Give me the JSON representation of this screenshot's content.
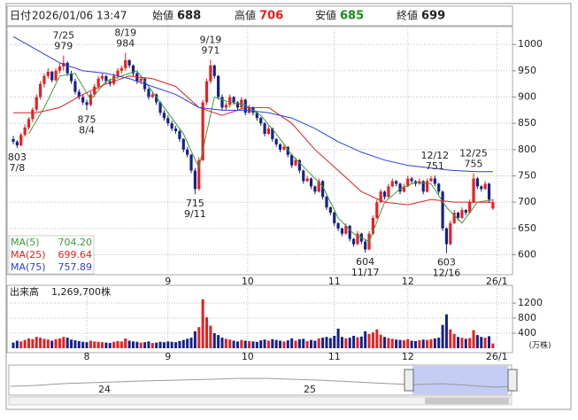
{
  "header": {
    "date_label": "日付",
    "datetime": "2026/01/06 13:47",
    "open_label": "始値",
    "open": 688,
    "high_label": "高値",
    "high": 706,
    "low_label": "安値",
    "low": 685,
    "close_label": "終値",
    "close": 699
  },
  "chart_data": [
    {
      "type": "candlestick",
      "up_color": "#e8201e",
      "down_color": "#16218a",
      "ylim": [
        562,
        1034
      ],
      "yticks": [
        600,
        650,
        700,
        750,
        800,
        850,
        900,
        950,
        1000
      ],
      "grid": true,
      "xticks": [
        {
          "value": 40,
          "label": "9"
        },
        {
          "value": 60.6,
          "label": "10"
        },
        {
          "value": 83,
          "label": "11"
        },
        {
          "value": 102,
          "label": "12"
        },
        {
          "value": 125,
          "label": "26/1"
        }
      ],
      "candles": [
        [
          820,
          826,
          810,
          815
        ],
        [
          815,
          818,
          803,
          808
        ],
        [
          808,
          832,
          806,
          828
        ],
        [
          828,
          848,
          825,
          842
        ],
        [
          842,
          862,
          838,
          858
        ],
        [
          858,
          880,
          852,
          876
        ],
        [
          876,
          905,
          872,
          900
        ],
        [
          900,
          930,
          895,
          925
        ],
        [
          925,
          945,
          918,
          940
        ],
        [
          940,
          955,
          935,
          948
        ],
        [
          948,
          950,
          928,
          932
        ],
        [
          932,
          955,
          930,
          950
        ],
        [
          950,
          965,
          945,
          958
        ],
        [
          958,
          979,
          950,
          965
        ],
        [
          965,
          968,
          940,
          945
        ],
        [
          945,
          950,
          925,
          930
        ],
        [
          930,
          935,
          905,
          910
        ],
        [
          910,
          915,
          895,
          900
        ],
        [
          900,
          905,
          885,
          890
        ],
        [
          890,
          895,
          875,
          885
        ],
        [
          885,
          910,
          882,
          905
        ],
        [
          905,
          925,
          900,
          920
        ],
        [
          920,
          940,
          915,
          935
        ],
        [
          935,
          945,
          930,
          940
        ],
        [
          940,
          942,
          925,
          930
        ],
        [
          930,
          935,
          920,
          925
        ],
        [
          925,
          945,
          922,
          940
        ],
        [
          940,
          955,
          935,
          950
        ],
        [
          950,
          960,
          945,
          955
        ],
        [
          955,
          984,
          950,
          970
        ],
        [
          970,
          972,
          955,
          960
        ],
        [
          960,
          962,
          940,
          945
        ],
        [
          945,
          948,
          925,
          930
        ],
        [
          930,
          940,
          925,
          935
        ],
        [
          935,
          937,
          910,
          915
        ],
        [
          915,
          918,
          895,
          900
        ],
        [
          900,
          910,
          898,
          905
        ],
        [
          905,
          907,
          885,
          890
        ],
        [
          890,
          892,
          865,
          870
        ],
        [
          870,
          875,
          855,
          860
        ],
        [
          860,
          865,
          845,
          850
        ],
        [
          850,
          855,
          835,
          840
        ],
        [
          840,
          845,
          830,
          835
        ],
        [
          835,
          838,
          815,
          820
        ],
        [
          820,
          822,
          795,
          800
        ],
        [
          800,
          805,
          785,
          790
        ],
        [
          790,
          792,
          755,
          760
        ],
        [
          760,
          765,
          715,
          725
        ],
        [
          725,
          785,
          722,
          780
        ],
        [
          780,
          895,
          778,
          890
        ],
        [
          890,
          935,
          885,
          930
        ],
        [
          930,
          971,
          925,
          960
        ],
        [
          960,
          962,
          935,
          940
        ],
        [
          940,
          942,
          895,
          900
        ],
        [
          900,
          905,
          875,
          880
        ],
        [
          880,
          890,
          875,
          885
        ],
        [
          885,
          905,
          880,
          900
        ],
        [
          900,
          902,
          885,
          890
        ],
        [
          890,
          892,
          875,
          880
        ],
        [
          880,
          900,
          878,
          895
        ],
        [
          895,
          897,
          865,
          870
        ],
        [
          870,
          885,
          868,
          880
        ],
        [
          880,
          882,
          865,
          870
        ],
        [
          870,
          872,
          855,
          860
        ],
        [
          860,
          862,
          845,
          850
        ],
        [
          850,
          852,
          825,
          830
        ],
        [
          830,
          845,
          828,
          840
        ],
        [
          840,
          842,
          815,
          820
        ],
        [
          820,
          822,
          805,
          810
        ],
        [
          810,
          812,
          795,
          800
        ],
        [
          800,
          810,
          798,
          805
        ],
        [
          805,
          807,
          785,
          790
        ],
        [
          790,
          792,
          765,
          770
        ],
        [
          770,
          785,
          768,
          780
        ],
        [
          780,
          782,
          755,
          760
        ],
        [
          760,
          762,
          735,
          740
        ],
        [
          740,
          750,
          738,
          745
        ],
        [
          745,
          747,
          725,
          730
        ],
        [
          730,
          732,
          715,
          720
        ],
        [
          720,
          745,
          718,
          740
        ],
        [
          740,
          742,
          705,
          710
        ],
        [
          710,
          712,
          685,
          690
        ],
        [
          690,
          692,
          675,
          680
        ],
        [
          680,
          682,
          655,
          660
        ],
        [
          660,
          662,
          645,
          650
        ],
        [
          650,
          652,
          635,
          640
        ],
        [
          640,
          660,
          638,
          655
        ],
        [
          655,
          657,
          625,
          630
        ],
        [
          630,
          632,
          615,
          620
        ],
        [
          620,
          645,
          618,
          640
        ],
        [
          640,
          642,
          620,
          625
        ],
        [
          625,
          628,
          604,
          610
        ],
        [
          610,
          645,
          608,
          640
        ],
        [
          640,
          675,
          638,
          670
        ],
        [
          670,
          705,
          668,
          700
        ],
        [
          700,
          725,
          698,
          720
        ],
        [
          720,
          722,
          705,
          710
        ],
        [
          710,
          735,
          708,
          730
        ],
        [
          730,
          745,
          728,
          740
        ],
        [
          740,
          742,
          730,
          735
        ],
        [
          735,
          737,
          715,
          720
        ],
        [
          720,
          735,
          718,
          730
        ],
        [
          730,
          750,
          728,
          745
        ],
        [
          745,
          748,
          735,
          740
        ],
        [
          740,
          742,
          730,
          735
        ],
        [
          735,
          745,
          733,
          740
        ],
        [
          740,
          742,
          715,
          720
        ],
        [
          720,
          745,
          718,
          740
        ],
        [
          740,
          750,
          738,
          745
        ],
        [
          745,
          751,
          730,
          735
        ],
        [
          735,
          737,
          715,
          720
        ],
        [
          720,
          722,
          645,
          650
        ],
        [
          650,
          652,
          603,
          620
        ],
        [
          620,
          665,
          618,
          660
        ],
        [
          660,
          685,
          658,
          680
        ],
        [
          680,
          682,
          665,
          670
        ],
        [
          670,
          690,
          668,
          685
        ],
        [
          685,
          687,
          675,
          680
        ],
        [
          680,
          705,
          678,
          700
        ],
        [
          700,
          755,
          698,
          745
        ],
        [
          745,
          748,
          725,
          730
        ],
        [
          730,
          732,
          720,
          725
        ],
        [
          725,
          740,
          723,
          735
        ],
        [
          735,
          737,
          700,
          705
        ],
        [
          688,
          706,
          685,
          699
        ]
      ],
      "series": [
        {
          "name": "MA(5)",
          "color": "#3a9a3a",
          "value_label": "704.20",
          "x": [
            4,
            8,
            12,
            16,
            20,
            24,
            28,
            32,
            36,
            40,
            44,
            48,
            52,
            56,
            60,
            64,
            68,
            72,
            76,
            80,
            84,
            88,
            92,
            96,
            100,
            104,
            108,
            112,
            116,
            120,
            124
          ],
          "values": [
            830,
            880,
            940,
            945,
            895,
            930,
            940,
            950,
            910,
            870,
            830,
            765,
            900,
            890,
            885,
            865,
            830,
            790,
            760,
            730,
            670,
            640,
            625,
            700,
            725,
            738,
            735,
            690,
            660,
            700,
            704.2
          ]
        },
        {
          "name": "MA(25)",
          "color": "#e02020",
          "value_label": "699.64",
          "x": [
            0,
            6,
            12,
            18,
            24,
            30,
            36,
            42,
            48,
            54,
            60,
            66,
            72,
            78,
            84,
            90,
            96,
            102,
            108,
            114,
            120,
            124
          ],
          "values": [
            870,
            870,
            880,
            905,
            925,
            940,
            935,
            920,
            880,
            865,
            880,
            880,
            850,
            800,
            760,
            720,
            700,
            695,
            705,
            700,
            700,
            699.64
          ]
        },
        {
          "name": "MA(75)",
          "color": "#2b3fd6",
          "value_label": "757.89",
          "x": [
            0,
            6,
            12,
            18,
            24,
            30,
            36,
            42,
            48,
            54,
            60,
            66,
            72,
            78,
            84,
            90,
            96,
            102,
            108,
            114,
            120,
            124
          ],
          "values": [
            1015,
            990,
            965,
            950,
            945,
            935,
            920,
            905,
            880,
            875,
            875,
            870,
            860,
            840,
            815,
            795,
            780,
            770,
            765,
            760,
            758,
            757.89
          ]
        }
      ],
      "annotations": [
        {
          "x": 1,
          "value": 803,
          "label": "7/8",
          "place": "below"
        },
        {
          "x": 13,
          "value": 979,
          "label": "7/25",
          "place": "above"
        },
        {
          "x": 19,
          "value": 875,
          "label": "8/4",
          "place": "below"
        },
        {
          "x": 29,
          "value": 984,
          "label": "8/19",
          "place": "above"
        },
        {
          "x": 47,
          "value": 715,
          "label": "9/11",
          "place": "below"
        },
        {
          "x": 51,
          "value": 971,
          "label": "9/19",
          "place": "above"
        },
        {
          "x": 91,
          "value": 604,
          "label": "11/17",
          "place": "below"
        },
        {
          "x": 109,
          "value": 751,
          "label": "12/12",
          "place": "above"
        },
        {
          "x": 112,
          "value": 603,
          "label": "12/16",
          "place": "below"
        },
        {
          "x": 119,
          "value": 755,
          "label": "12/25",
          "place": "above"
        }
      ]
    },
    {
      "type": "bar",
      "title": "出来高",
      "subtitle": "1,269,700株",
      "unit_label": "(万株)",
      "ylim": [
        0,
        1600
      ],
      "yticks": [
        400,
        800,
        1200
      ],
      "grid": true,
      "xticks": [
        {
          "value": 19,
          "label": "8"
        },
        {
          "value": 40,
          "label": "9"
        },
        {
          "value": 60.6,
          "label": "10"
        },
        {
          "value": 83,
          "label": "11"
        },
        {
          "value": 102,
          "label": "12"
        },
        {
          "value": 125,
          "label": "26/1"
        }
      ],
      "values": [
        150,
        200,
        180,
        220,
        260,
        240,
        300,
        280,
        250,
        230,
        200,
        240,
        260,
        300,
        280,
        230,
        210,
        190,
        170,
        160,
        200,
        180,
        170,
        160,
        150,
        140,
        170,
        190,
        180,
        260,
        200,
        180,
        170,
        150,
        160,
        180,
        140,
        150,
        170,
        160,
        180,
        170,
        160,
        190,
        220,
        250,
        280,
        450,
        560,
        1300,
        820,
        600,
        400,
        350,
        280,
        250,
        230,
        200,
        180,
        220,
        200,
        190,
        180,
        170,
        210,
        230,
        200,
        240,
        220,
        200,
        180,
        210,
        260,
        200,
        240,
        250,
        190,
        220,
        200,
        260,
        280,
        300,
        270,
        330,
        520,
        300,
        260,
        280,
        330,
        290,
        310,
        450,
        380,
        420,
        500,
        360,
        300,
        270,
        250,
        230,
        220,
        210,
        240,
        200,
        190,
        210,
        230,
        220,
        240,
        260,
        280,
        620,
        900,
        500,
        380,
        300,
        280,
        250,
        270,
        480,
        350,
        300,
        280,
        320,
        127
      ]
    }
  ],
  "navigator": {
    "labels": [
      "24",
      "25"
    ]
  }
}
